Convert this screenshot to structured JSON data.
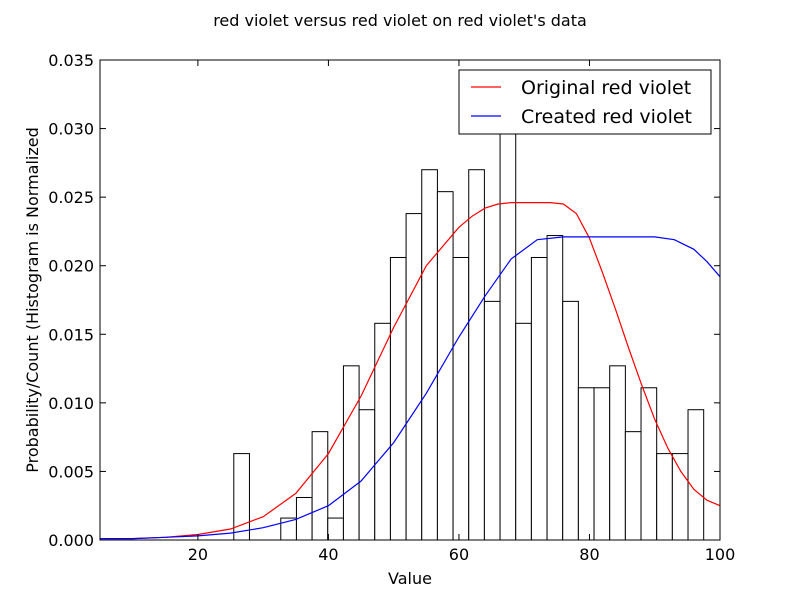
{
  "chart_data": {
    "type": "bar",
    "title": "red violet versus red violet on red violet's data",
    "xlabel": "Value",
    "ylabel": "Probability/Count (Histogram is Normalized",
    "xlim": [
      5,
      100
    ],
    "ylim": [
      0,
      0.035
    ],
    "x_ticks": [
      "20",
      "40",
      "60",
      "80",
      "100"
    ],
    "y_ticks": [
      "0.000",
      "0.005",
      "0.010",
      "0.015",
      "0.020",
      "0.025",
      "0.030",
      "0.035"
    ],
    "x_tick_values": [
      20,
      40,
      60,
      80,
      100
    ],
    "y_tick_values": [
      0,
      0.005,
      0.01,
      0.015,
      0.02,
      0.025,
      0.03,
      0.035
    ],
    "grid": false,
    "legend_position": "top-right",
    "histogram": {
      "bin_width": 2.4,
      "bins": [
        {
          "start": 25.5,
          "value": 0.0063
        },
        {
          "start": 32.7,
          "value": 0.0016
        },
        {
          "start": 35.1,
          "value": 0.0031
        },
        {
          "start": 37.5,
          "value": 0.0079
        },
        {
          "start": 39.9,
          "value": 0.0016
        },
        {
          "start": 42.3,
          "value": 0.0127
        },
        {
          "start": 44.7,
          "value": 0.0095
        },
        {
          "start": 47.1,
          "value": 0.0158
        },
        {
          "start": 49.5,
          "value": 0.0206
        },
        {
          "start": 51.9,
          "value": 0.0238
        },
        {
          "start": 54.3,
          "value": 0.027
        },
        {
          "start": 56.7,
          "value": 0.0254
        },
        {
          "start": 59.1,
          "value": 0.0206
        },
        {
          "start": 61.5,
          "value": 0.027
        },
        {
          "start": 63.9,
          "value": 0.0174
        },
        {
          "start": 66.3,
          "value": 0.03
        },
        {
          "start": 68.7,
          "value": 0.0158
        },
        {
          "start": 71.1,
          "value": 0.0206
        },
        {
          "start": 73.5,
          "value": 0.0222
        },
        {
          "start": 75.9,
          "value": 0.0174
        },
        {
          "start": 78.3,
          "value": 0.0111
        },
        {
          "start": 80.7,
          "value": 0.0111
        },
        {
          "start": 83.1,
          "value": 0.0127
        },
        {
          "start": 85.5,
          "value": 0.0079
        },
        {
          "start": 87.9,
          "value": 0.0111
        },
        {
          "start": 90.3,
          "value": 0.0063
        },
        {
          "start": 92.7,
          "value": 0.0063
        },
        {
          "start": 95.1,
          "value": 0.0095
        }
      ]
    },
    "series": [
      {
        "name": "Original red violet",
        "color": "#ff0000",
        "x": [
          5,
          10,
          15,
          20,
          25,
          30,
          35,
          40,
          45,
          50,
          55,
          60,
          62,
          64,
          66,
          68,
          70,
          72,
          74,
          76,
          78,
          80,
          82,
          84,
          86,
          88,
          90,
          92,
          94,
          96,
          98,
          100
        ],
        "y": [
          0.0001,
          0.0001,
          0.0002,
          0.0004,
          0.0008,
          0.0017,
          0.0034,
          0.0063,
          0.0105,
          0.0155,
          0.02,
          0.0228,
          0.0236,
          0.0242,
          0.0245,
          0.0246,
          0.0246,
          0.0246,
          0.0246,
          0.0245,
          0.0238,
          0.022,
          0.0195,
          0.0168,
          0.014,
          0.0113,
          0.0088,
          0.0067,
          0.005,
          0.0037,
          0.0029,
          0.0025
        ]
      },
      {
        "name": "Created red violet",
        "color": "#0000ff",
        "x": [
          5,
          10,
          15,
          20,
          25,
          30,
          35,
          40,
          45,
          50,
          55,
          60,
          64,
          68,
          72,
          76,
          80,
          85,
          90,
          93,
          96,
          98,
          100
        ],
        "y": [
          0.0001,
          0.0001,
          0.0002,
          0.0003,
          0.0005,
          0.0009,
          0.0015,
          0.0025,
          0.0043,
          0.0071,
          0.0107,
          0.0148,
          0.0178,
          0.0205,
          0.0219,
          0.0221,
          0.0221,
          0.0221,
          0.0221,
          0.0219,
          0.0212,
          0.0203,
          0.0192
        ]
      }
    ]
  }
}
